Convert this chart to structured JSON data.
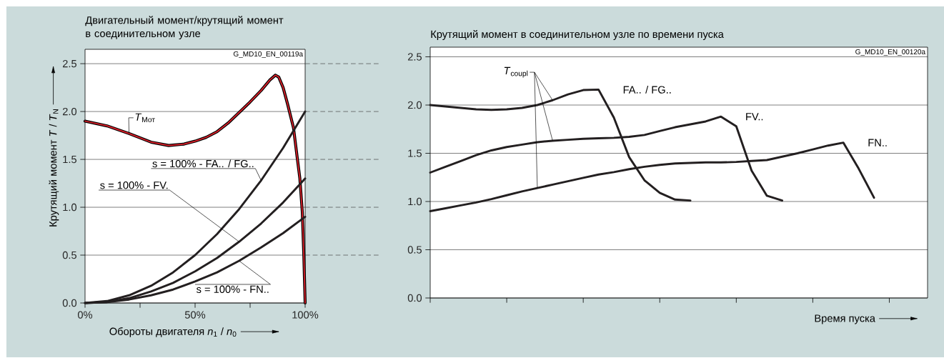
{
  "chart_data": [
    {
      "type": "line",
      "title": "Двигательный момент/крутящий момент в соединительном узле",
      "xlabel": "Обороты двигателя *n*$_{1}$ / *n*$_{0}$",
      "ylabel": "Крутящий момент  *T* / *T*$_{N}$",
      "xlim": [
        0,
        100
      ],
      "ylim": [
        0,
        2.65
      ],
      "xticks": [
        {
          "value": 0,
          "label": "0%"
        },
        {
          "value": 25,
          "label": null
        },
        {
          "value": 50,
          "label": "50%"
        },
        {
          "value": 75,
          "label": null
        },
        {
          "value": 100,
          "label": "100%"
        }
      ],
      "yticks": [
        {
          "value": 0,
          "label": "0.0"
        },
        {
          "value": 0.5,
          "label": "0.5"
        },
        {
          "value": 1,
          "label": "1.0"
        },
        {
          "value": 1.5,
          "label": "1.5"
        },
        {
          "value": 2,
          "label": "2.0"
        },
        {
          "value": 2.5,
          "label": "2.5"
        }
      ],
      "grid": "y",
      "annotations": [
        "G_MD10_EN_00119a"
      ],
      "series": [
        {
          "name": "*T*$_{Мот}$",
          "color": "#e0202a",
          "x": [
            0,
            10,
            20,
            30,
            38,
            45,
            50,
            55,
            60,
            65,
            70,
            75,
            80,
            84,
            86.5,
            88,
            90,
            92,
            94.7,
            96.5,
            97.6,
            98.7,
            99.4,
            100
          ],
          "values": [
            1.9,
            1.85,
            1.77,
            1.68,
            1.645,
            1.66,
            1.69,
            1.73,
            1.79,
            1.88,
            1.99,
            2.1,
            2.22,
            2.33,
            2.38,
            2.36,
            2.25,
            2.08,
            1.83,
            1.5,
            1.3,
            0.955,
            0.5,
            0
          ]
        },
        {
          "name": "s = 100% - FA.. / FG..",
          "color": "#231f20",
          "x": [
            0,
            10,
            20,
            30,
            40,
            50,
            60,
            70,
            80,
            90,
            100
          ],
          "values": [
            0,
            0.02,
            0.08,
            0.18,
            0.32,
            0.5,
            0.72,
            0.98,
            1.28,
            1.62,
            2.0
          ]
        },
        {
          "name": "s = 100% - FV.",
          "color": "#231f20",
          "x": [
            0,
            10,
            20,
            30,
            40,
            50,
            60,
            70,
            80,
            90,
            100
          ],
          "values": [
            0,
            0.01,
            0.05,
            0.12,
            0.21,
            0.33,
            0.47,
            0.64,
            0.83,
            1.05,
            1.3
          ]
        },
        {
          "name": "s = 100% - FN..",
          "color": "#231f20",
          "x": [
            0,
            10,
            20,
            30,
            40,
            50,
            60,
            70,
            80,
            90,
            100
          ],
          "values": [
            0,
            0.009,
            0.036,
            0.08,
            0.14,
            0.225,
            0.32,
            0.44,
            0.58,
            0.73,
            0.9
          ]
        }
      ]
    },
    {
      "type": "line",
      "title": "Крутящий момент в соединительном узле по времени пуска",
      "xlabel": "Время пуска",
      "categories": [
        null,
        null,
        null,
        null,
        null,
        null,
        null,
        null,
        null,
        null,
        null,
        null,
        null,
        null,
        null,
        null,
        null,
        null,
        null,
        null,
        null,
        null,
        null,
        null,
        null,
        null,
        null,
        null,
        null,
        null,
        null,
        null,
        null
      ],
      "ylim": [
        0,
        2.6
      ],
      "yticks": [
        {
          "value": 0,
          "label": "0.0"
        },
        {
          "value": 0.5,
          "label": "0.5"
        },
        {
          "value": 1,
          "label": "1.0"
        },
        {
          "value": 1.5,
          "label": "1.5"
        },
        {
          "value": 2,
          "label": "2.0"
        },
        {
          "value": 2.5,
          "label": "2.5"
        }
      ],
      "grid": "y",
      "annotations": [
        "*T*$_{coupl}$",
        "G_MD10_EN_00120a"
      ],
      "series": [
        {
          "name": "FA.. / FG..",
          "color": "#231f20",
          "values": [
            2.0,
            1.985,
            1.97,
            1.955,
            1.95,
            1.955,
            1.97,
            2.0,
            2.05,
            2.11,
            2.155,
            2.16,
            1.87,
            1.46,
            1.22,
            1.09,
            1.02,
            1.01,
            null,
            null,
            null,
            null,
            null,
            null,
            null,
            null,
            null,
            null,
            null,
            null,
            null,
            null,
            null
          ]
        },
        {
          "name": "FV..",
          "color": "#231f20",
          "values": [
            1.3,
            1.36,
            1.42,
            1.48,
            1.53,
            1.565,
            1.59,
            1.615,
            1.63,
            1.64,
            1.65,
            1.655,
            1.66,
            1.67,
            1.69,
            1.73,
            1.77,
            1.8,
            1.83,
            1.88,
            1.78,
            1.32,
            1.06,
            1.01,
            null,
            null,
            null,
            null,
            null,
            null,
            null,
            null,
            null
          ]
        },
        {
          "name": "FN..",
          "color": "#231f20",
          "values": [
            0.9,
            0.93,
            0.96,
            0.99,
            1.025,
            1.065,
            1.105,
            1.14,
            1.175,
            1.21,
            1.245,
            1.28,
            1.305,
            1.335,
            1.36,
            1.38,
            1.395,
            1.4,
            1.405,
            1.405,
            1.41,
            1.42,
            1.43,
            1.465,
            1.5,
            1.54,
            1.58,
            1.61,
            1.34,
            1.04,
            null,
            null,
            null
          ]
        }
      ]
    }
  ]
}
